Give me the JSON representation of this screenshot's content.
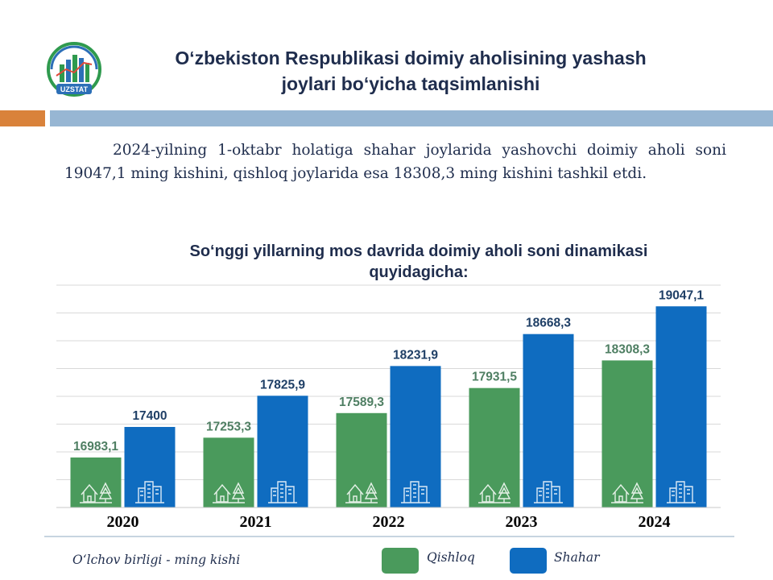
{
  "header": {
    "logo_text": "UZSTAT",
    "title_line1": "O‘zbekiston Respublikasi  doimiy aholisining yashash",
    "title_line2": "joylari bo‘yicha taqsimlanishi"
  },
  "intro_text": "2024-yilning  1-oktabr holatiga shahar joylarida yashovchi doimiy aholi soni 19047,1 ming kishini, qishloq joylarida esa 18308,3 ming kishini tashkil etdi.",
  "chart_title_line1": "So‘nggi yillarning mos davrida doimiy aholi soni dinamikasi",
  "chart_title_line2": "quyidagicha:",
  "colors": {
    "qishloq": "#4a9a5c",
    "shahar": "#0f6cc0",
    "qishloq_label": "#4f7f63",
    "shahar_label": "#1f3f66",
    "header_orange": "#d9823b",
    "header_blue": "#97b6d3"
  },
  "chart_data": {
    "type": "bar",
    "categories": [
      "2020",
      "2021",
      "2022",
      "2023",
      "2024"
    ],
    "series": [
      {
        "name": "Qishloq",
        "values": [
          16983.1,
          17253.3,
          17589.3,
          17931.5,
          18308.3
        ],
        "labels": [
          "16983,1",
          "17253,3",
          "17589,3",
          "17931,5",
          "18308,3"
        ],
        "icon": "house-icon"
      },
      {
        "name": "Shahar",
        "values": [
          17400,
          17825.9,
          18231.9,
          18668.3,
          19047.1
        ],
        "labels": [
          "17400",
          "17825,9",
          "18231,9",
          "18668,3",
          "19047,1"
        ],
        "icon": "building-icon"
      }
    ],
    "unit": "O‘lchov birligi - ming kishi",
    "grid": true,
    "legend_position": "bottom-right"
  },
  "footer": {
    "unit_label": "O‘lchov birligi - ming kishi",
    "legend": [
      {
        "label": "Qishloq"
      },
      {
        "label": "Shahar"
      }
    ]
  }
}
